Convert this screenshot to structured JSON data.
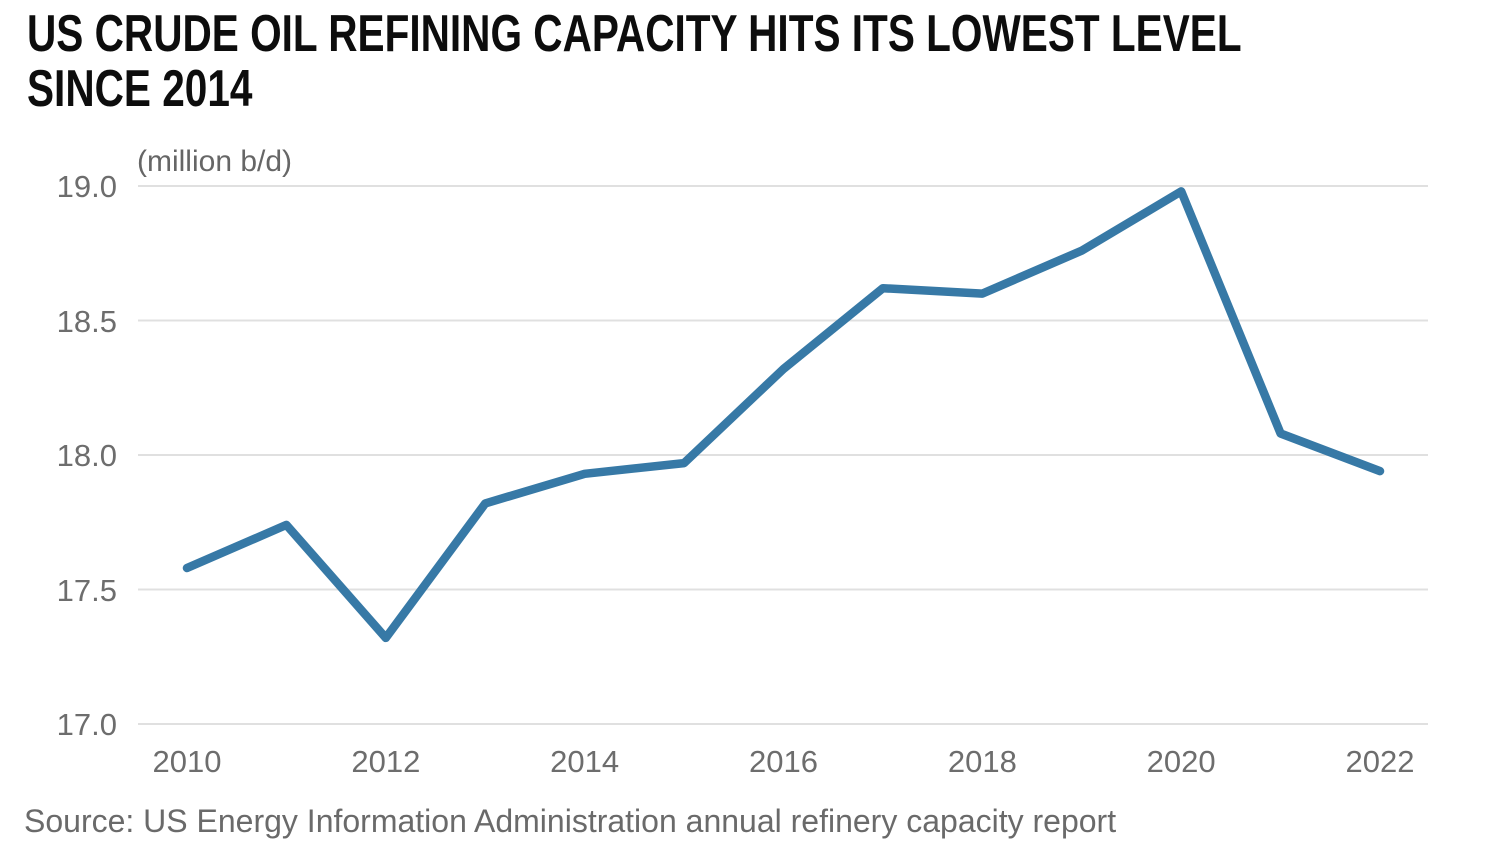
{
  "chart_data": {
    "type": "line",
    "title": "US CRUDE OIL REFINING CAPACITY HITS ITS LOWEST LEVEL SINCE 2014",
    "title_lines": [
      "US CRUDE OIL REFINING CAPACITY HITS ITS LOWEST LEVEL",
      "SINCE 2014"
    ],
    "unit_label": "(million b/d)",
    "source": "Source: US Energy Information Administration annual refinery capacity report",
    "series": [
      {
        "name": "US crude oil refining capacity",
        "x": [
          2010,
          2011,
          2012,
          2013,
          2014,
          2015,
          2016,
          2017,
          2018,
          2019,
          2020,
          2021,
          2022
        ],
        "values": [
          17.58,
          17.74,
          17.32,
          17.82,
          17.93,
          17.97,
          18.32,
          18.62,
          18.6,
          18.76,
          18.98,
          18.08,
          17.94
        ]
      }
    ],
    "xlabel": "",
    "ylabel": "(million b/d)",
    "xlim": [
      2010,
      2022
    ],
    "ylim": [
      17.0,
      19.0
    ],
    "xticks": [
      "2010",
      "2012",
      "2014",
      "2016",
      "2018",
      "2020",
      "2022"
    ],
    "yticks": [
      "19.0",
      "18.5",
      "18.0",
      "17.5",
      "17.0"
    ],
    "grid": "horizontal",
    "legend": null,
    "colors": {
      "line": "#3779a6",
      "gridline": "#e0e0e0",
      "title_text": "#0d0d0d",
      "axis_text": "#6d6d6d",
      "source_text": "#6a6a6a",
      "background": "#ffffff"
    }
  }
}
